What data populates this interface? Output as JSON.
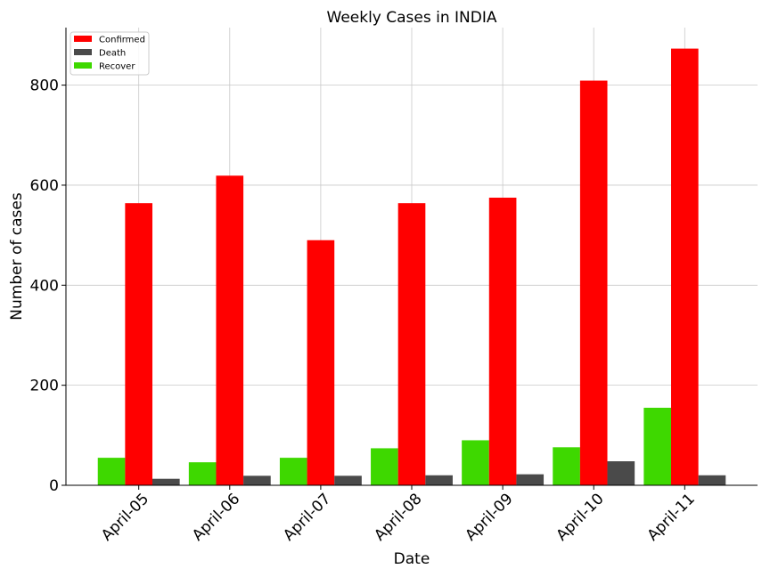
{
  "chart_data": {
    "type": "bar",
    "title": "Weekly Cases in INDIA",
    "xlabel": "Date",
    "ylabel": "Number of cases",
    "categories": [
      "April-05",
      "April-06",
      "April-07",
      "April-08",
      "April-09",
      "April-10",
      "April-11"
    ],
    "series": [
      {
        "name": "Recover",
        "color": "#3ed800",
        "values": [
          55,
          46,
          55,
          74,
          90,
          76,
          155
        ]
      },
      {
        "name": "Confirmed",
        "color": "#ff0000",
        "values": [
          564,
          619,
          490,
          564,
          575,
          809,
          873
        ]
      },
      {
        "name": "Death",
        "color": "#4a4a4a",
        "values": [
          13,
          19,
          19,
          20,
          22,
          48,
          20
        ]
      }
    ],
    "legend_order": [
      "Confirmed",
      "Death",
      "Recover"
    ],
    "legend_position": "top-left",
    "ylim": [
      0,
      915
    ],
    "yticks": [
      0,
      200,
      400,
      600,
      800
    ],
    "grid": true
  }
}
